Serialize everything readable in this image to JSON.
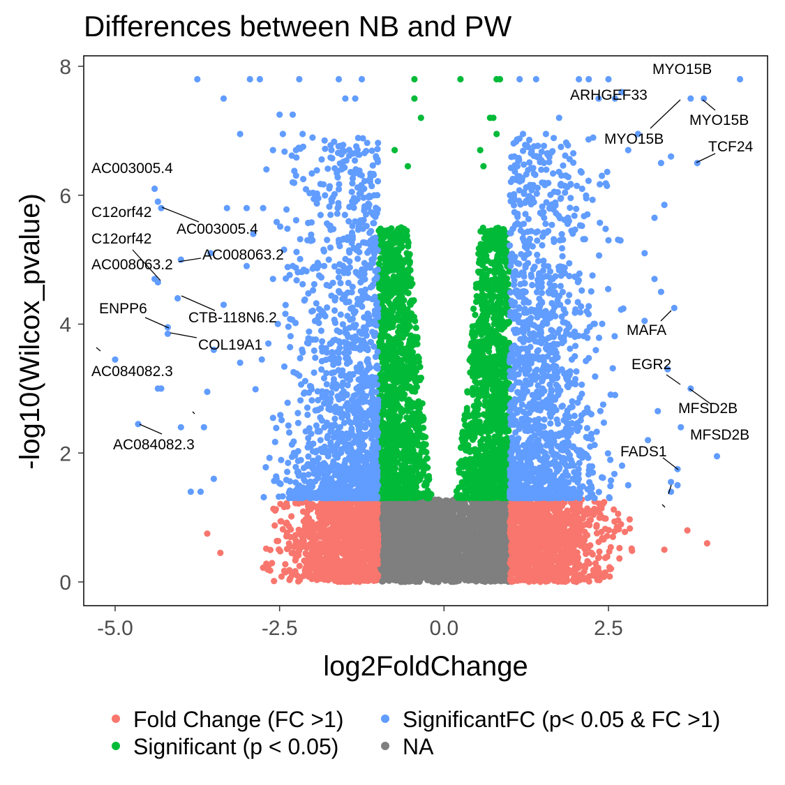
{
  "chart_data": {
    "type": "scatter",
    "title": "Differences between NB and PW",
    "xlabel": "log2FoldChange",
    "ylabel": "-log10(Wilcox_pvalue)",
    "xlim": [
      -5.5,
      4.9
    ],
    "ylim": [
      -0.4,
      8.2
    ],
    "xticks": [
      -5.0,
      -2.5,
      0.0,
      2.5
    ],
    "xtick_labels": [
      "-5.0",
      "-2.5",
      "0.0",
      "2.5"
    ],
    "yticks": [
      0,
      2,
      4,
      6,
      8
    ],
    "ytick_labels": [
      "0",
      "2",
      "4",
      "6",
      "8"
    ],
    "grid": false,
    "legend_position": "bottom",
    "series": [
      {
        "name": "Fold Change (FC >1)",
        "color": "#F8766D"
      },
      {
        "name": "Significant (p < 0.05)",
        "color": "#00BA38"
      },
      {
        "name": "SignificantFC (p< 0.05 & FC >1)",
        "color": "#619CFF"
      },
      {
        "name": "NA",
        "color": "#7F7F7F"
      }
    ],
    "labeled_points": [
      {
        "label": "MYO15B",
        "x": 4.5,
        "y": 7.8
      },
      {
        "label": "ARHGEF33",
        "x": 3.2,
        "y": 7.6
      },
      {
        "label": "MYO15B",
        "x": 3.75,
        "y": 7.5
      },
      {
        "label": "MYO15B",
        "x": 3.95,
        "y": 7.5
      },
      {
        "label": "TCF24",
        "x": 3.85,
        "y": 6.5
      },
      {
        "label": "AC003005.4",
        "x": -4.4,
        "y": 6.1
      },
      {
        "label": "C12orf42",
        "x": -4.3,
        "y": 5.8
      },
      {
        "label": "AC003005.4",
        "x": -4.35,
        "y": 5.9
      },
      {
        "label": "C12orf42",
        "x": -4.4,
        "y": 4.7
      },
      {
        "label": "AC008063.2",
        "x": -4.0,
        "y": 5.0
      },
      {
        "label": "AC008063.2",
        "x": -4.35,
        "y": 4.65
      },
      {
        "label": "CTB-118N6.2",
        "x": -4.05,
        "y": 4.4
      },
      {
        "label": "ENPP6",
        "x": -4.2,
        "y": 3.95
      },
      {
        "label": "COL19A1",
        "x": -4.2,
        "y": 3.85
      },
      {
        "label": "AC084082.3",
        "x": -5.0,
        "y": 3.45
      },
      {
        "label": "AC084082.3",
        "x": -4.65,
        "y": 2.45
      },
      {
        "label": "MAFA",
        "x": 3.5,
        "y": 4.25
      },
      {
        "label": "EGR2",
        "x": 3.4,
        "y": 3.3
      },
      {
        "label": "MFSD2B",
        "x": 3.75,
        "y": 3.0
      },
      {
        "label": "MFSD2B",
        "x": 4.15,
        "y": 1.95
      },
      {
        "label": "FADS1",
        "x": 3.55,
        "y": 1.75
      }
    ]
  }
}
